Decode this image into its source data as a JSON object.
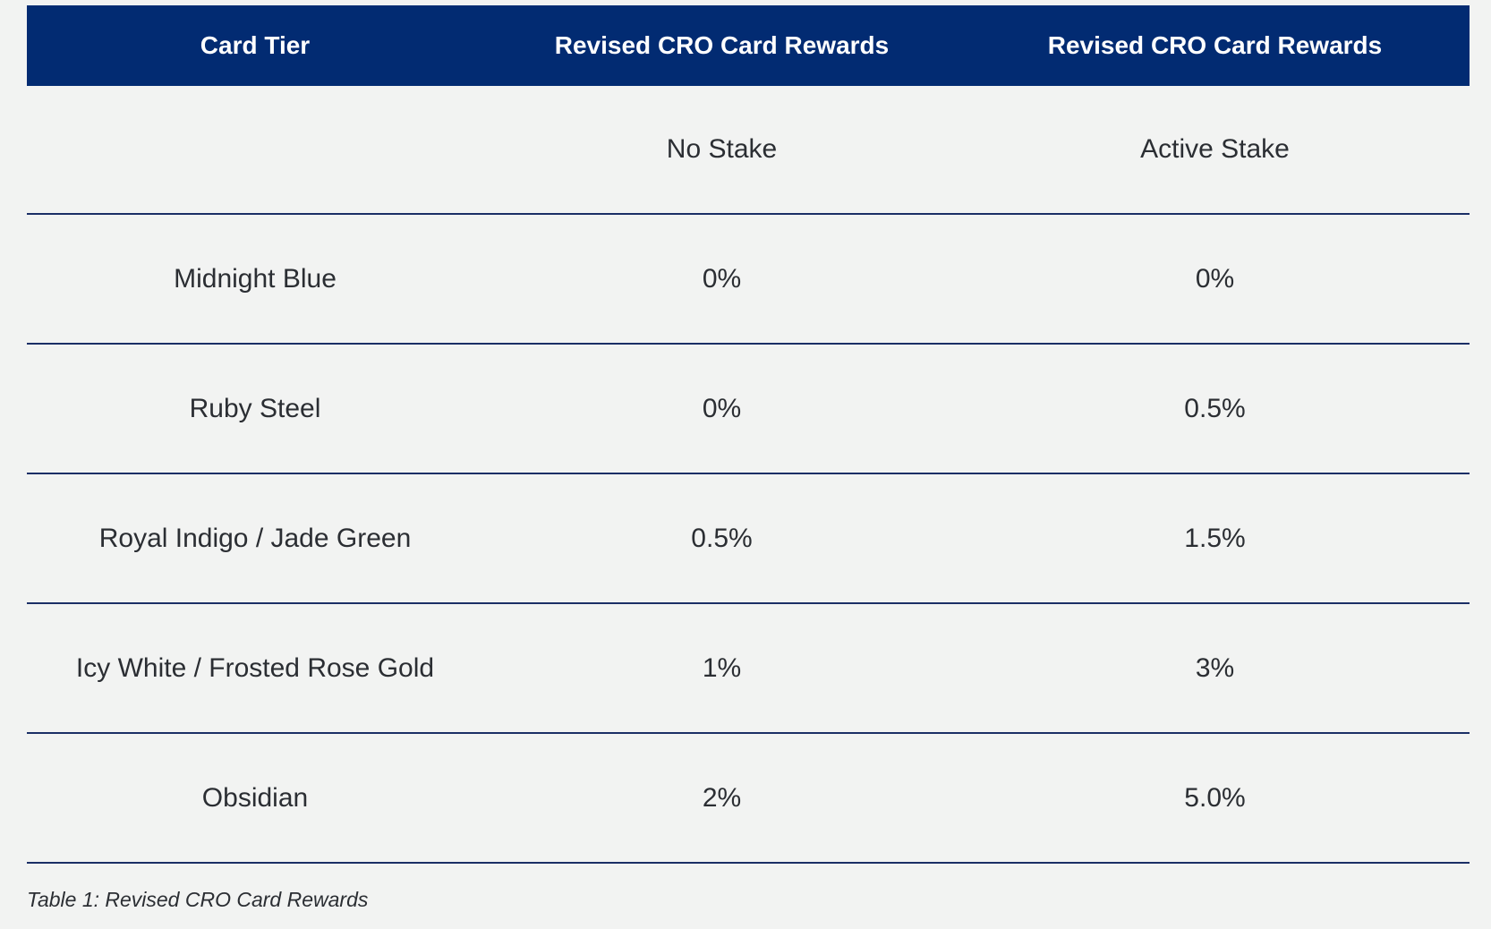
{
  "table": {
    "headers": [
      "Card Tier",
      "Revised CRO Card Rewards",
      "Revised CRO Card Rewards"
    ],
    "subheader": [
      "",
      "No Stake",
      "Active Stake"
    ],
    "rows": [
      [
        "Midnight Blue",
        "0%",
        "0%"
      ],
      [
        "Ruby Steel",
        "0%",
        "0.5%"
      ],
      [
        "Royal Indigo / Jade Green",
        "0.5%",
        "1.5%"
      ],
      [
        "Icy White / Frosted Rose Gold",
        "1%",
        "3%"
      ],
      [
        "Obsidian",
        "2%",
        "5.0%"
      ]
    ]
  },
  "caption": "Table 1: Revised CRO Card Rewards",
  "colors": {
    "header_bg": "#022b72",
    "header_text": "#ffffff",
    "page_bg": "#f2f3f2",
    "rule": "#1b2f66",
    "body_text": "#2b2e33"
  }
}
